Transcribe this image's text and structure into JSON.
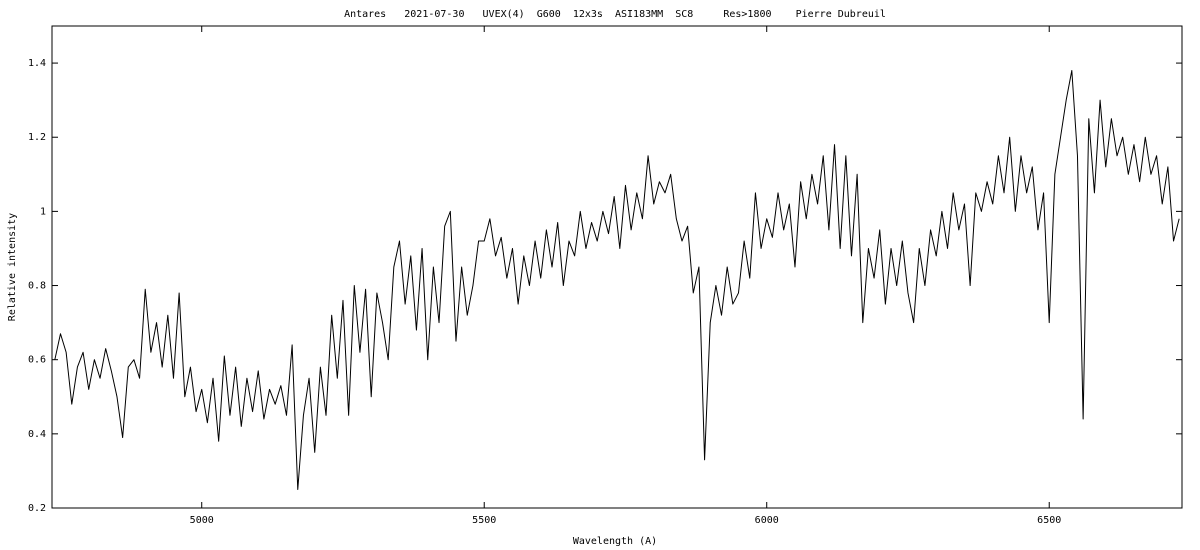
{
  "chart_data": {
    "type": "line",
    "title": "Antares   2021-07-30   UVEX(4)  G600  12x3s  ASI183MM  SC8     Res>1800    Pierre Dubreuil",
    "x_label": "Wavelength (A)",
    "y_label": "Relative intensity",
    "xlim": [
      4735,
      6735
    ],
    "ylim": [
      0.2,
      1.5
    ],
    "xticks": [
      5000,
      5500,
      6000,
      6500
    ],
    "yticks": [
      0.2,
      0.4,
      0.6,
      0.8,
      1,
      1.2,
      1.4
    ],
    "color": "#000000",
    "x": [
      4740,
      4750,
      4760,
      4770,
      4780,
      4790,
      4800,
      4810,
      4820,
      4830,
      4840,
      4850,
      4860,
      4870,
      4880,
      4890,
      4900,
      4910,
      4920,
      4930,
      4940,
      4950,
      4960,
      4970,
      4980,
      4990,
      5000,
      5010,
      5020,
      5030,
      5040,
      5050,
      5060,
      5070,
      5080,
      5090,
      5100,
      5110,
      5120,
      5130,
      5140,
      5150,
      5160,
      5170,
      5180,
      5190,
      5200,
      5210,
      5220,
      5230,
      5240,
      5250,
      5260,
      5270,
      5280,
      5290,
      5300,
      5310,
      5320,
      5330,
      5340,
      5350,
      5360,
      5370,
      5380,
      5390,
      5400,
      5410,
      5420,
      5430,
      5440,
      5450,
      5460,
      5470,
      5480,
      5490,
      5500,
      5510,
      5520,
      5530,
      5540,
      5550,
      5560,
      5570,
      5580,
      5590,
      5600,
      5610,
      5620,
      5630,
      5640,
      5650,
      5660,
      5670,
      5680,
      5690,
      5700,
      5710,
      5720,
      5730,
      5740,
      5750,
      5760,
      5770,
      5780,
      5790,
      5800,
      5810,
      5820,
      5830,
      5840,
      5850,
      5860,
      5870,
      5880,
      5890,
      5900,
      5910,
      5920,
      5930,
      5940,
      5950,
      5960,
      5970,
      5980,
      5990,
      6000,
      6010,
      6020,
      6030,
      6040,
      6050,
      6060,
      6070,
      6080,
      6090,
      6100,
      6110,
      6120,
      6130,
      6140,
      6150,
      6160,
      6170,
      6180,
      6190,
      6200,
      6210,
      6220,
      6230,
      6240,
      6250,
      6260,
      6270,
      6280,
      6290,
      6300,
      6310,
      6320,
      6330,
      6340,
      6350,
      6360,
      6370,
      6380,
      6390,
      6400,
      6410,
      6420,
      6430,
      6440,
      6450,
      6460,
      6470,
      6480,
      6490,
      6500,
      6510,
      6520,
      6530,
      6540,
      6550,
      6560,
      6570,
      6580,
      6590,
      6600,
      6610,
      6620,
      6630,
      6640,
      6650,
      6660,
      6670,
      6680,
      6690,
      6700,
      6710,
      6720,
      6730
    ],
    "values": [
      0.6,
      0.67,
      0.62,
      0.48,
      0.58,
      0.62,
      0.52,
      0.6,
      0.55,
      0.63,
      0.57,
      0.5,
      0.39,
      0.58,
      0.6,
      0.55,
      0.79,
      0.62,
      0.7,
      0.58,
      0.72,
      0.55,
      0.78,
      0.5,
      0.58,
      0.46,
      0.52,
      0.43,
      0.55,
      0.38,
      0.61,
      0.45,
      0.58,
      0.42,
      0.55,
      0.46,
      0.57,
      0.44,
      0.52,
      0.48,
      0.53,
      0.45,
      0.64,
      0.25,
      0.45,
      0.55,
      0.35,
      0.58,
      0.45,
      0.72,
      0.55,
      0.76,
      0.45,
      0.8,
      0.62,
      0.79,
      0.5,
      0.78,
      0.7,
      0.6,
      0.85,
      0.92,
      0.75,
      0.88,
      0.68,
      0.9,
      0.6,
      0.85,
      0.7,
      0.96,
      1.0,
      0.65,
      0.85,
      0.72,
      0.8,
      0.92,
      0.92,
      0.98,
      0.88,
      0.93,
      0.82,
      0.9,
      0.75,
      0.88,
      0.8,
      0.92,
      0.82,
      0.95,
      0.85,
      0.97,
      0.8,
      0.92,
      0.88,
      1.0,
      0.9,
      0.97,
      0.92,
      1.0,
      0.94,
      1.04,
      0.9,
      1.07,
      0.95,
      1.05,
      0.98,
      1.15,
      1.02,
      1.08,
      1.05,
      1.1,
      0.98,
      0.92,
      0.96,
      0.78,
      0.85,
      0.33,
      0.7,
      0.8,
      0.72,
      0.85,
      0.75,
      0.78,
      0.92,
      0.82,
      1.05,
      0.9,
      0.98,
      0.93,
      1.05,
      0.95,
      1.02,
      0.85,
      1.08,
      0.98,
      1.1,
      1.02,
      1.15,
      0.95,
      1.18,
      0.9,
      1.15,
      0.88,
      1.1,
      0.7,
      0.9,
      0.82,
      0.95,
      0.75,
      0.9,
      0.8,
      0.92,
      0.78,
      0.7,
      0.9,
      0.8,
      0.95,
      0.88,
      1.0,
      0.9,
      1.05,
      0.95,
      1.02,
      0.8,
      1.05,
      1.0,
      1.08,
      1.02,
      1.15,
      1.05,
      1.2,
      1.0,
      1.15,
      1.05,
      1.12,
      0.95,
      1.05,
      0.7,
      1.1,
      1.2,
      1.3,
      1.38,
      1.15,
      0.44,
      1.25,
      1.05,
      1.3,
      1.12,
      1.25,
      1.15,
      1.2,
      1.1,
      1.18,
      1.08,
      1.2,
      1.1,
      1.15,
      1.02,
      1.12,
      0.92,
      0.98
    ]
  }
}
